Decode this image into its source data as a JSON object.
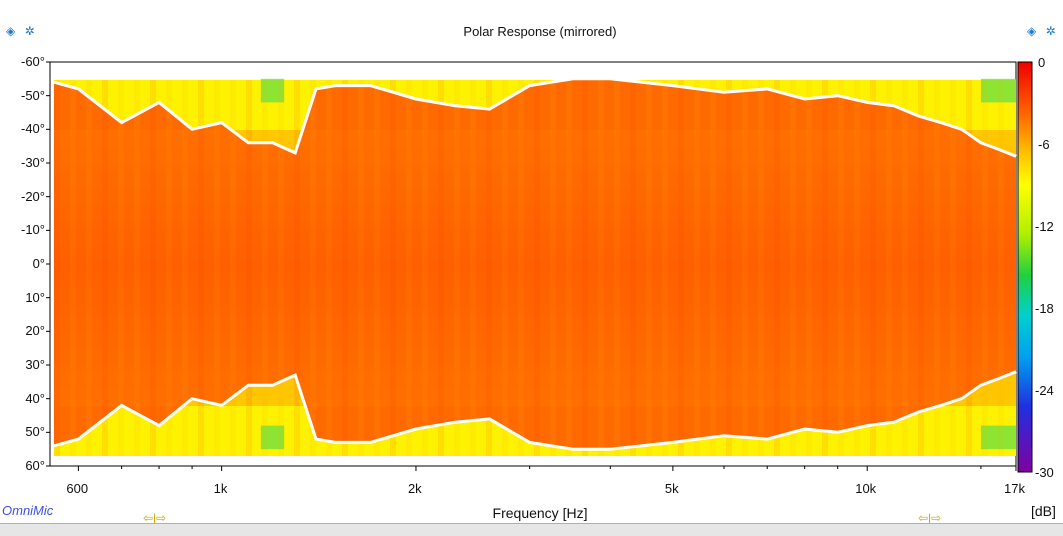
{
  "chart_data": {
    "type": "heatmap",
    "title": "Polar Response (mirrored)",
    "xlabel": "Frequency [Hz]",
    "ylabel": "",
    "x_scale": "log",
    "xlim": [
      550,
      17000
    ],
    "ylim": [
      -60,
      60
    ],
    "x_ticks": [
      "600",
      "1k",
      "2k",
      "5k",
      "10k",
      "17k"
    ],
    "y_ticks": [
      "-60°",
      "-50°",
      "-40°",
      "-30°",
      "-20°",
      "-10°",
      "0°",
      "10°",
      "20°",
      "30°",
      "40°",
      "50°",
      "60°"
    ],
    "colorbar": {
      "label": "[dB]",
      "range": [
        -30,
        0
      ],
      "ticks": [
        "0",
        "-6",
        "-12",
        "-18",
        "-24",
        "-30"
      ]
    },
    "contour_level_db": -6,
    "contour_angle_deg": {
      "frequencies": [
        550,
        600,
        700,
        800,
        900,
        1000,
        1100,
        1200,
        1300,
        1400,
        1500,
        1700,
        2000,
        2300,
        2600,
        3000,
        3500,
        4000,
        5000,
        6000,
        7000,
        8000,
        9000,
        10000,
        11000,
        12000,
        13000,
        14000,
        15000,
        16000,
        17000
      ],
      "angles": [
        54,
        52,
        42,
        48,
        40,
        42,
        36,
        36,
        33,
        52,
        53,
        53,
        49,
        47,
        46,
        53,
        55,
        55,
        53,
        51,
        52,
        49,
        50,
        48,
        47,
        44,
        42,
        40,
        36,
        34,
        32
      ]
    },
    "colors": [
      "#7e00a0",
      "#2030e0",
      "#00b0f0",
      "#20d040",
      "#c8f000",
      "#ffff00",
      "#ffc000",
      "#ff6000",
      "#f00000"
    ]
  },
  "ui": {
    "brand": "OmniMic",
    "controls_left": "◈ ✲",
    "controls_right": "◈ ✲",
    "range_arrows_left": "⇦|⇨",
    "range_arrows_right": "⇦|⇨"
  }
}
